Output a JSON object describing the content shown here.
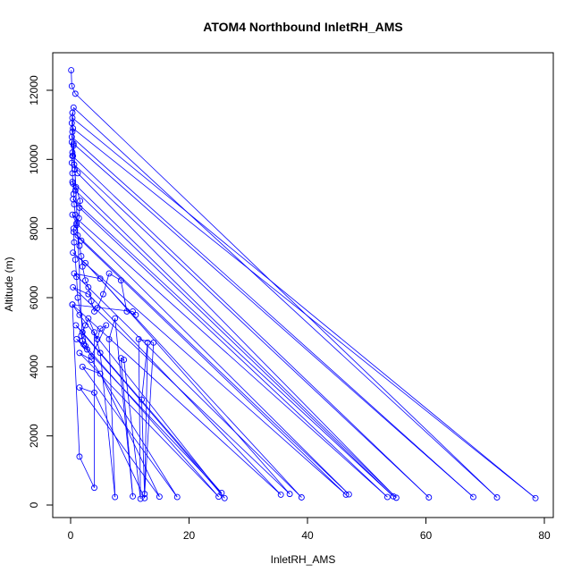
{
  "chart_data": {
    "type": "scatter",
    "title": "ATOM4 Northbound InletRH_AMS",
    "xlabel": "InletRH_AMS",
    "ylabel": "Altitude (m)",
    "xlim": [
      0,
      80
    ],
    "ylim": [
      0,
      12600
    ],
    "x_ticks": [
      "0",
      "20",
      "40",
      "60",
      "80"
    ],
    "y_ticks": [
      "0",
      "2000",
      "4000",
      "6000",
      "8000",
      "10000",
      "12000"
    ],
    "grid": false,
    "legend": "none",
    "color": "#0000ff",
    "connected_lines": true,
    "points": [
      {
        "x": 0.1,
        "y": 12580
      },
      {
        "x": 0.2,
        "y": 12120
      },
      {
        "x": 0.8,
        "y": 11900
      },
      {
        "x": 72.0,
        "y": 220
      },
      {
        "x": 0.5,
        "y": 11500
      },
      {
        "x": 0.3,
        "y": 11200
      },
      {
        "x": 78.5,
        "y": 200
      },
      {
        "x": 0.4,
        "y": 10900
      },
      {
        "x": 0.2,
        "y": 10650
      },
      {
        "x": 68.0,
        "y": 230
      },
      {
        "x": 0.5,
        "y": 10450
      },
      {
        "x": 0.3,
        "y": 10100
      },
      {
        "x": 60.5,
        "y": 220
      },
      {
        "x": 0.6,
        "y": 9850
      },
      {
        "x": 1.2,
        "y": 9600
      },
      {
        "x": 55.0,
        "y": 210
      },
      {
        "x": 0.3,
        "y": 9350
      },
      {
        "x": 0.8,
        "y": 9100
      },
      {
        "x": 54.5,
        "y": 250
      },
      {
        "x": 0.4,
        "y": 8850
      },
      {
        "x": 1.5,
        "y": 8600
      },
      {
        "x": 53.5,
        "y": 230
      },
      {
        "x": 0.3,
        "y": 8400
      },
      {
        "x": 1.0,
        "y": 8150
      },
      {
        "x": 47.0,
        "y": 310
      },
      {
        "x": 0.5,
        "y": 7900
      },
      {
        "x": 1.8,
        "y": 7650
      },
      {
        "x": 46.5,
        "y": 300
      },
      {
        "x": 0.4,
        "y": 7300
      },
      {
        "x": 2.5,
        "y": 7000
      },
      {
        "x": 39.0,
        "y": 220
      },
      {
        "x": 0.6,
        "y": 6700
      },
      {
        "x": 5.0,
        "y": 6550
      },
      {
        "x": 37.0,
        "y": 320
      },
      {
        "x": 0.4,
        "y": 6300
      },
      {
        "x": 3.0,
        "y": 6100
      },
      {
        "x": 35.5,
        "y": 300
      },
      {
        "x": 0.3,
        "y": 5800
      },
      {
        "x": 1.5,
        "y": 5500
      },
      {
        "x": 26.0,
        "y": 200
      },
      {
        "x": 0.9,
        "y": 5200
      },
      {
        "x": 2.0,
        "y": 5000
      },
      {
        "x": 25.5,
        "y": 350
      },
      {
        "x": 1.0,
        "y": 4800
      },
      {
        "x": 2.5,
        "y": 4600
      },
      {
        "x": 25.0,
        "y": 240
      },
      {
        "x": 1.5,
        "y": 4400
      },
      {
        "x": 3.5,
        "y": 4200
      },
      {
        "x": 18.0,
        "y": 230
      },
      {
        "x": 2.0,
        "y": 4000
      },
      {
        "x": 5.0,
        "y": 3800
      },
      {
        "x": 15.0,
        "y": 240
      },
      {
        "x": 1.5,
        "y": 3400
      },
      {
        "x": 4.0,
        "y": 3250
      },
      {
        "x": 12.5,
        "y": 200
      },
      {
        "x": 12.0,
        "y": 3050
      },
      {
        "x": 13.0,
        "y": 4700
      },
      {
        "x": 12.5,
        "y": 320
      },
      {
        "x": 14.0,
        "y": 4700
      },
      {
        "x": 11.5,
        "y": 4800
      },
      {
        "x": 11.8,
        "y": 180
      },
      {
        "x": 9.0,
        "y": 4200
      },
      {
        "x": 8.5,
        "y": 4250
      },
      {
        "x": 10.5,
        "y": 250
      },
      {
        "x": 7.5,
        "y": 5400
      },
      {
        "x": 6.5,
        "y": 4800
      },
      {
        "x": 7.5,
        "y": 230
      },
      {
        "x": 5.0,
        "y": 4400
      },
      {
        "x": 4.0,
        "y": 5000
      },
      {
        "x": 4.0,
        "y": 500
      },
      {
        "x": 1.5,
        "y": 1400
      },
      {
        "x": 0.3,
        "y": 5800
      },
      {
        "x": 10.5,
        "y": 5600
      },
      {
        "x": 11.0,
        "y": 5500
      },
      {
        "x": 9.5,
        "y": 5600
      },
      {
        "x": 8.5,
        "y": 6500
      },
      {
        "x": 6.5,
        "y": 6700
      },
      {
        "x": 5.5,
        "y": 6100
      },
      {
        "x": 4.5,
        "y": 5700
      },
      {
        "x": 4.0,
        "y": 5600
      },
      {
        "x": 3.5,
        "y": 5900
      },
      {
        "x": 3.0,
        "y": 6300
      },
      {
        "x": 2.5,
        "y": 6500
      },
      {
        "x": 2.0,
        "y": 6900
      },
      {
        "x": 1.8,
        "y": 7200
      },
      {
        "x": 1.5,
        "y": 7500
      },
      {
        "x": 1.2,
        "y": 7800
      },
      {
        "x": 1.0,
        "y": 8100
      },
      {
        "x": 0.8,
        "y": 8400
      },
      {
        "x": 0.6,
        "y": 8700
      },
      {
        "x": 0.5,
        "y": 9000
      },
      {
        "x": 0.4,
        "y": 9300
      },
      {
        "x": 0.3,
        "y": 9600
      },
      {
        "x": 0.2,
        "y": 9900
      },
      {
        "x": 0.3,
        "y": 10200
      },
      {
        "x": 0.2,
        "y": 10500
      },
      {
        "x": 0.3,
        "y": 10800
      },
      {
        "x": 0.2,
        "y": 11050
      },
      {
        "x": 0.3,
        "y": 11350
      },
      {
        "x": 2.0,
        "y": 4750
      },
      {
        "x": 2.2,
        "y": 4650
      },
      {
        "x": 1.8,
        "y": 4900
      },
      {
        "x": 2.5,
        "y": 5200
      },
      {
        "x": 3.0,
        "y": 5400
      },
      {
        "x": 4.5,
        "y": 4800
      },
      {
        "x": 5.0,
        "y": 5100
      },
      {
        "x": 6.0,
        "y": 5200
      },
      {
        "x": 3.5,
        "y": 4300
      },
      {
        "x": 2.8,
        "y": 4500
      },
      {
        "x": 1.2,
        "y": 6000
      },
      {
        "x": 1.0,
        "y": 6600
      },
      {
        "x": 0.8,
        "y": 7100
      },
      {
        "x": 0.6,
        "y": 7600
      },
      {
        "x": 0.5,
        "y": 8000
      },
      {
        "x": 1.4,
        "y": 8300
      },
      {
        "x": 1.6,
        "y": 8800
      },
      {
        "x": 0.9,
        "y": 9200
      },
      {
        "x": 0.7,
        "y": 9700
      },
      {
        "x": 0.4,
        "y": 10100
      },
      {
        "x": 0.5,
        "y": 10400
      }
    ]
  }
}
